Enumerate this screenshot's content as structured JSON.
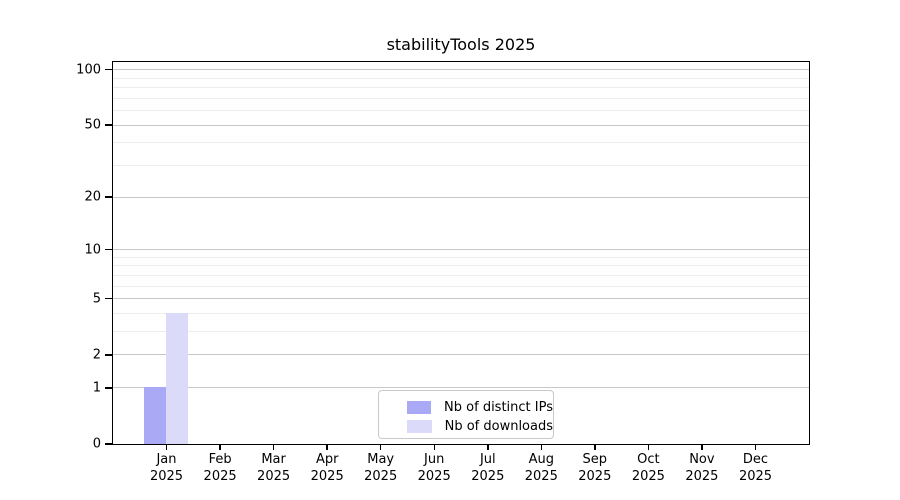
{
  "figure": {
    "background": "#ffffff"
  },
  "chart_data": {
    "type": "bar",
    "title": "stabilityTools 2025",
    "xlabel": "",
    "ylabel": "",
    "categories": [
      "Jan 2025",
      "Feb 2025",
      "Mar 2025",
      "Apr 2025",
      "May 2025",
      "Jun 2025",
      "Jul 2025",
      "Aug 2025",
      "Sep 2025",
      "Oct 2025",
      "Nov 2025",
      "Dec 2025"
    ],
    "x_tick_months": [
      "Jan",
      "Feb",
      "Mar",
      "Apr",
      "May",
      "Jun",
      "Jul",
      "Aug",
      "Sep",
      "Oct",
      "Nov",
      "Dec"
    ],
    "x_tick_year": "2025",
    "series": [
      {
        "name": "Nb of distinct IPs",
        "color": "#a9a9f6",
        "values": [
          1,
          0,
          0,
          0,
          0,
          0,
          0,
          0,
          0,
          0,
          0,
          0
        ]
      },
      {
        "name": "Nb of downloads",
        "color": "#dbdbf9",
        "values": [
          4,
          0,
          0,
          0,
          0,
          0,
          0,
          0,
          0,
          0,
          0,
          0
        ]
      }
    ],
    "yscale": "log1p",
    "ylim": [
      0,
      110
    ],
    "y_major_ticks": [
      0,
      1,
      2,
      5,
      10,
      20,
      50,
      100
    ],
    "y_minor_gridlines": [
      3,
      4,
      6,
      7,
      8,
      9,
      30,
      40,
      60,
      70,
      80,
      90
    ],
    "grid": true,
    "legend_position": "lower center",
    "legend_entries": [
      "Nb of distinct IPs",
      "Nb of downloads"
    ],
    "colors": {
      "major_grid": "#c8c8c8",
      "minor_grid": "#ececec",
      "axis": "#000000",
      "text": "#000000"
    }
  }
}
